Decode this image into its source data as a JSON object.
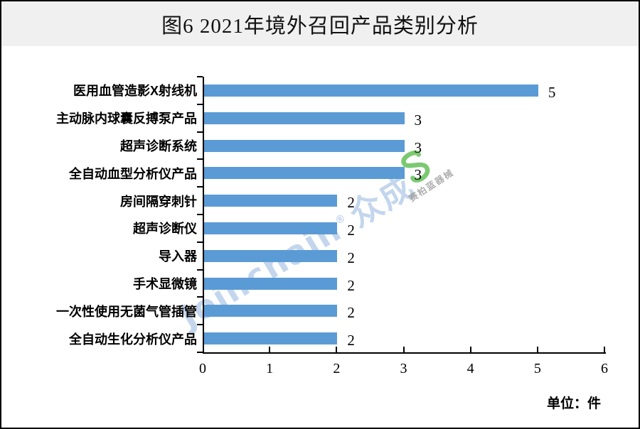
{
  "title": "图6 2021年境外召回产品类别分析",
  "unit_label": "单位：件",
  "watermark": {
    "brand": "Joinchain",
    "reg": "®",
    "brand_cn": "众成",
    "logo_caption": "赛柏蓝器械"
  },
  "colors": {
    "bar": "#5B9BD5",
    "header_bg": "#F0F0F0",
    "axis": "#000000",
    "watermark_blue": "#7AA4D6",
    "logo_green": "#5ABB4E",
    "logo_caption_gray": "#969696"
  },
  "chart_data": {
    "type": "bar",
    "orientation": "horizontal",
    "title": "图6 2021年境外召回产品类别分析",
    "unit": "单位：件",
    "categories": [
      "医用血管造影X射线机",
      "主动脉内球囊反搏泵产品",
      "超声诊断系统",
      "全自动血型分析仪产品",
      "房间隔穿刺针",
      "超声诊断仪",
      "导入器",
      "手术显微镜",
      "一次性使用无菌气管插管",
      "全自动生化分析仪产品"
    ],
    "values": [
      5,
      3,
      3,
      3,
      2,
      2,
      2,
      2,
      2,
      2
    ],
    "x_ticks": [
      0,
      1,
      2,
      3,
      4,
      5,
      6
    ],
    "xlim": [
      0,
      6
    ],
    "grid": false,
    "value_labels_shown": true,
    "legend": "none"
  }
}
